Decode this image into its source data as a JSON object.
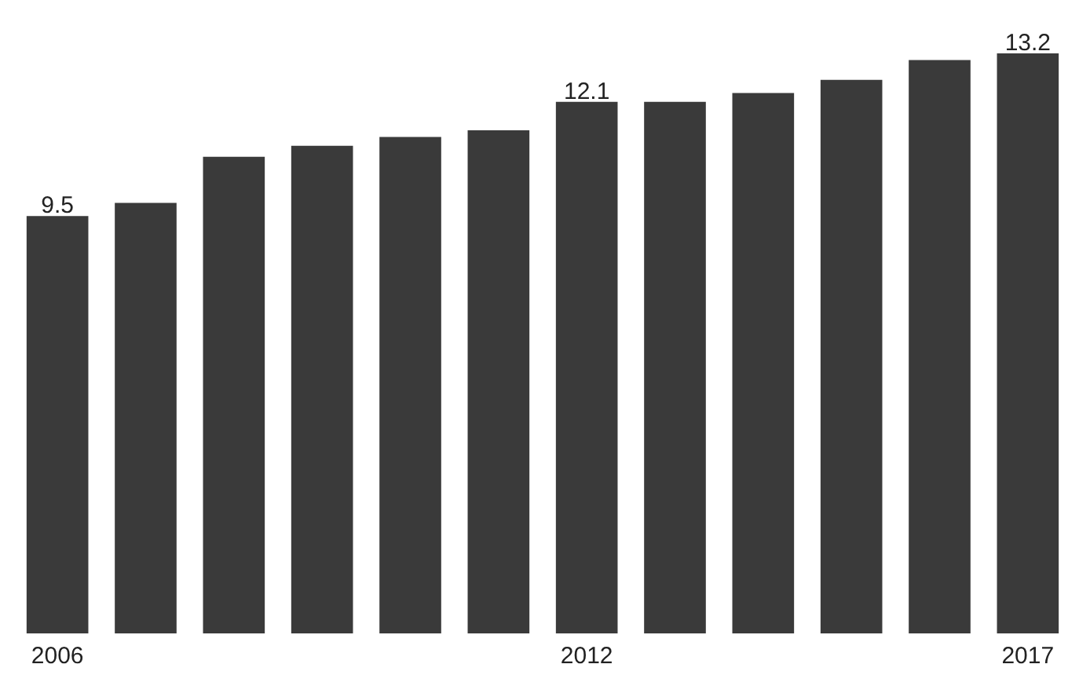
{
  "chart_data": {
    "type": "bar",
    "categories": [
      "2006",
      null,
      null,
      null,
      null,
      null,
      "2012",
      null,
      null,
      null,
      null,
      "2017"
    ],
    "values": [
      9.5,
      9.8,
      10.85,
      11.1,
      11.3,
      11.45,
      12.1,
      12.1,
      12.3,
      12.6,
      13.05,
      13.2
    ],
    "value_labels": [
      "9.5",
      null,
      null,
      null,
      null,
      null,
      "12.1",
      null,
      null,
      null,
      null,
      "13.2"
    ],
    "color": "#3a3a3a",
    "tick_labels": "x",
    "grid": false
  }
}
